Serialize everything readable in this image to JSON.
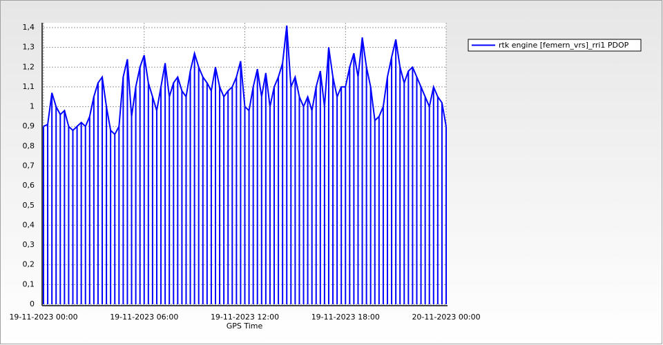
{
  "chart_data": {
    "type": "line",
    "x_label": "GPS Time",
    "x": [
      0,
      0.25,
      0.5,
      0.75,
      1,
      1.25,
      1.5,
      1.75,
      2,
      2.25,
      2.5,
      2.75,
      3,
      3.25,
      3.5,
      3.75,
      4,
      4.25,
      4.5,
      4.75,
      5,
      5.25,
      5.5,
      5.75,
      6,
      6.25,
      6.5,
      6.75,
      7,
      7.25,
      7.5,
      7.75,
      8,
      8.25,
      8.5,
      8.75,
      9,
      9.25,
      9.5,
      9.75,
      10,
      10.25,
      10.5,
      10.75,
      11,
      11.25,
      11.5,
      11.75,
      12,
      12.25,
      12.5,
      12.75,
      13,
      13.25,
      13.5,
      13.75,
      14,
      14.25,
      14.5,
      14.75,
      15,
      15.25,
      15.5,
      15.75,
      16,
      16.25,
      16.5,
      16.75,
      17,
      17.25,
      17.5,
      17.75,
      18,
      18.25,
      18.5,
      18.75,
      19,
      19.25,
      19.5,
      19.75,
      20,
      20.25,
      20.5,
      20.75,
      21,
      21.25,
      21.5,
      21.75,
      22,
      22.25,
      22.5,
      22.75,
      23,
      23.25,
      23.5,
      23.75,
      24
    ],
    "series": [
      {
        "name": "rtk engine [femern_vrs]_rri1 PDOP",
        "color": "#0000ff",
        "values": [
          0.9,
          0.91,
          1.07,
          1.0,
          0.96,
          0.98,
          0.9,
          0.88,
          0.9,
          0.92,
          0.9,
          0.95,
          1.05,
          1.12,
          1.15,
          1.0,
          0.88,
          0.86,
          0.9,
          1.15,
          1.24,
          0.95,
          1.1,
          1.2,
          1.26,
          1.12,
          1.05,
          0.98,
          1.1,
          1.22,
          1.05,
          1.12,
          1.15,
          1.08,
          1.05,
          1.18,
          1.27,
          1.2,
          1.15,
          1.12,
          1.08,
          1.2,
          1.1,
          1.05,
          1.08,
          1.1,
          1.15,
          1.23,
          1.0,
          0.98,
          1.1,
          1.19,
          1.05,
          1.17,
          1.0,
          1.1,
          1.15,
          1.22,
          1.41,
          1.1,
          1.15,
          1.05,
          1.0,
          1.05,
          0.98,
          1.1,
          1.18,
          1.0,
          1.3,
          1.15,
          1.05,
          1.1,
          1.1,
          1.2,
          1.27,
          1.15,
          1.35,
          1.2,
          1.1,
          0.93,
          0.95,
          1.0,
          1.15,
          1.25,
          1.34,
          1.2,
          1.12,
          1.18,
          1.2,
          1.15,
          1.1,
          1.05,
          1.0,
          1.1,
          1.05,
          1.02,
          0.9
        ]
      }
    ],
    "xlim": [
      0,
      24
    ],
    "xticks": [
      {
        "value": 0,
        "label": "19-11-2023 00:00"
      },
      {
        "value": 6,
        "label": "19-11-2023 06:00"
      },
      {
        "value": 12,
        "label": "19-11-2023 12:00"
      },
      {
        "value": 18,
        "label": "19-11-2023 18:00"
      },
      {
        "value": 24,
        "label": "20-11-2023 00:00"
      }
    ],
    "ylim": [
      0,
      1.4
    ],
    "yticks": [
      0,
      {
        "value": 0.1,
        "label": "0,1"
      },
      {
        "value": 0.2,
        "label": "0,2"
      },
      {
        "value": 0.3,
        "label": "0,3"
      },
      {
        "value": 0.4,
        "label": "0,4"
      },
      {
        "value": 0.5,
        "label": "0,5"
      },
      {
        "value": 0.6,
        "label": "0,6"
      },
      {
        "value": 0.7,
        "label": "0,7"
      },
      {
        "value": 0.8,
        "label": "0,8"
      },
      {
        "value": 0.9,
        "label": "0,9"
      },
      1,
      {
        "value": 1.1,
        "label": "1,1"
      },
      {
        "value": 1.2,
        "label": "1,2"
      },
      {
        "value": 1.3,
        "label": "1,3"
      },
      {
        "value": 1.4,
        "label": "1,4"
      }
    ],
    "grid": true,
    "legend": "top-right"
  }
}
